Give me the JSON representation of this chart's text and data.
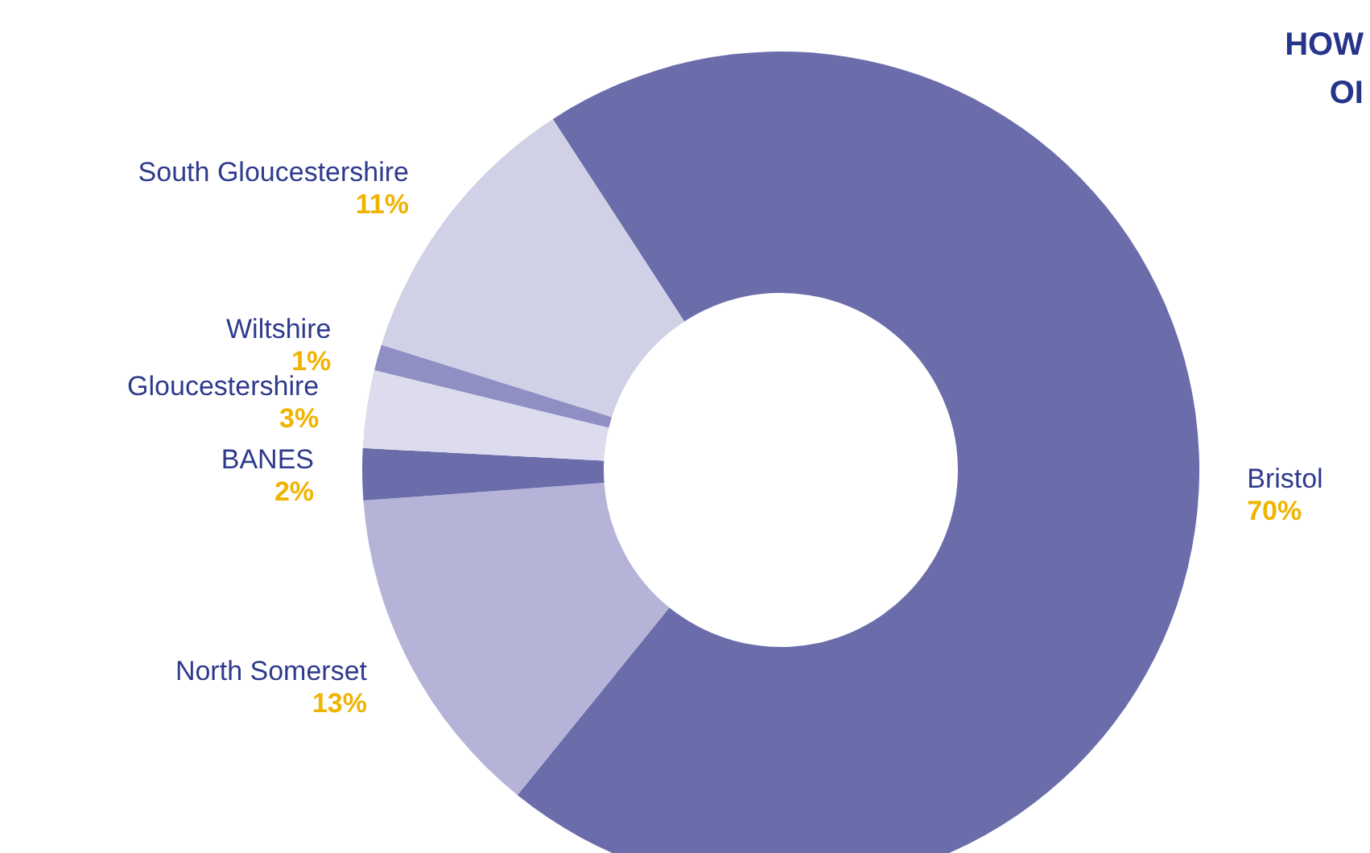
{
  "chart_data": {
    "type": "donut",
    "categories": [
      "Bristol",
      "North Somerset",
      "BANES",
      "Gloucestershire",
      "Wiltshire",
      "South Gloucestershire"
    ],
    "values": [
      70,
      13,
      2,
      3,
      1,
      11
    ],
    "value_labels": [
      "70%",
      "13%",
      "2%",
      "3%",
      "1%",
      "11%"
    ],
    "colors": [
      "#6b6dab",
      "#b5b4d8",
      "#6b6dab",
      "#dcdcee",
      "#8f8fc4",
      "#d0d0e6"
    ],
    "annotations": [
      "HOW",
      "OI"
    ]
  }
}
